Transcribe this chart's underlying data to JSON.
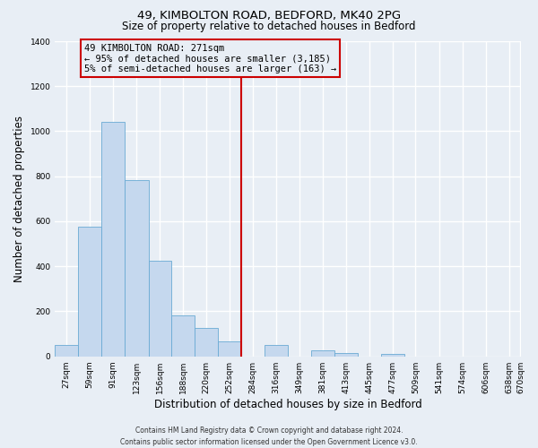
{
  "title_line1": "49, KIMBOLTON ROAD, BEDFORD, MK40 2PG",
  "title_line2": "Size of property relative to detached houses in Bedford",
  "xlabel": "Distribution of detached houses by size in Bedford",
  "ylabel": "Number of detached properties",
  "bin_labels": [
    "27sqm",
    "59sqm",
    "91sqm",
    "123sqm",
    "156sqm",
    "188sqm",
    "220sqm",
    "252sqm",
    "284sqm",
    "316sqm",
    "349sqm",
    "381sqm",
    "413sqm",
    "445sqm",
    "477sqm",
    "509sqm",
    "541sqm",
    "574sqm",
    "606sqm",
    "638sqm",
    "670sqm"
  ],
  "bin_left_edges": [
    27,
    59,
    91,
    123,
    156,
    188,
    220,
    252,
    284,
    316,
    349,
    381,
    413,
    445,
    477,
    509,
    541,
    574,
    606,
    638
  ],
  "bin_widths": [
    32,
    32,
    32,
    33,
    32,
    32,
    32,
    32,
    32,
    33,
    32,
    32,
    32,
    32,
    32,
    32,
    33,
    32,
    32,
    32
  ],
  "bar_heights": [
    50,
    575,
    1040,
    785,
    425,
    180,
    125,
    65,
    0,
    50,
    0,
    25,
    15,
    0,
    10,
    0,
    0,
    0,
    0,
    0
  ],
  "bar_color": "#c5d8ee",
  "bar_edge_color": "#6aaad4",
  "vline_x": 284,
  "vline_color": "#cc0000",
  "annotation_title": "49 KIMBOLTON ROAD: 271sqm",
  "annotation_line1": "← 95% of detached houses are smaller (3,185)",
  "annotation_line2": "5% of semi-detached houses are larger (163) →",
  "annotation_box_color": "#cc0000",
  "ylim": [
    0,
    1400
  ],
  "yticks": [
    0,
    200,
    400,
    600,
    800,
    1000,
    1200,
    1400
  ],
  "footer_line1": "Contains HM Land Registry data © Crown copyright and database right 2024.",
  "footer_line2": "Contains public sector information licensed under the Open Government Licence v3.0.",
  "background_color": "#e8eef5",
  "grid_color": "#ffffff",
  "title1_fontsize": 9.5,
  "title2_fontsize": 8.5,
  "tick_fontsize": 6.5,
  "label_fontsize": 8.5,
  "ann_fontsize": 7.5,
  "footer_fontsize": 5.5
}
